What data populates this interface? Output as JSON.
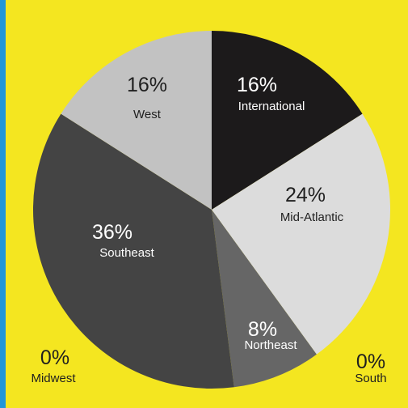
{
  "colors": {
    "background": "#f4e620",
    "left_rule": "#2196d9"
  },
  "chart_data": {
    "type": "pie",
    "title": "",
    "start_angle_deg": 0,
    "direction": "clockwise",
    "slices": [
      {
        "label": "International",
        "value": 16,
        "display": "16%",
        "color": "#1c1a1b",
        "text_color": "#ffffff"
      },
      {
        "label": "Mid-Atlantic",
        "value": 24,
        "display": "24%",
        "color": "#dcdcdc",
        "text_color": "#1f1f1f"
      },
      {
        "label": "Northeast",
        "value": 8,
        "display": "8%",
        "color": "#666666",
        "text_color": "#ffffff"
      },
      {
        "label": "South",
        "value": 0,
        "display": "0%",
        "color": "#888888",
        "text_color": "#1f1f1f"
      },
      {
        "label": "Midwest",
        "value": 0,
        "display": "0%",
        "color": "#888888",
        "text_color": "#1f1f1f"
      },
      {
        "label": "Southeast",
        "value": 36,
        "display": "36%",
        "color": "#444444",
        "text_color": "#ffffff"
      },
      {
        "label": "West",
        "value": 16,
        "display": "16%",
        "color": "#c2c2c2",
        "text_color": "#1f1f1f"
      }
    ]
  }
}
